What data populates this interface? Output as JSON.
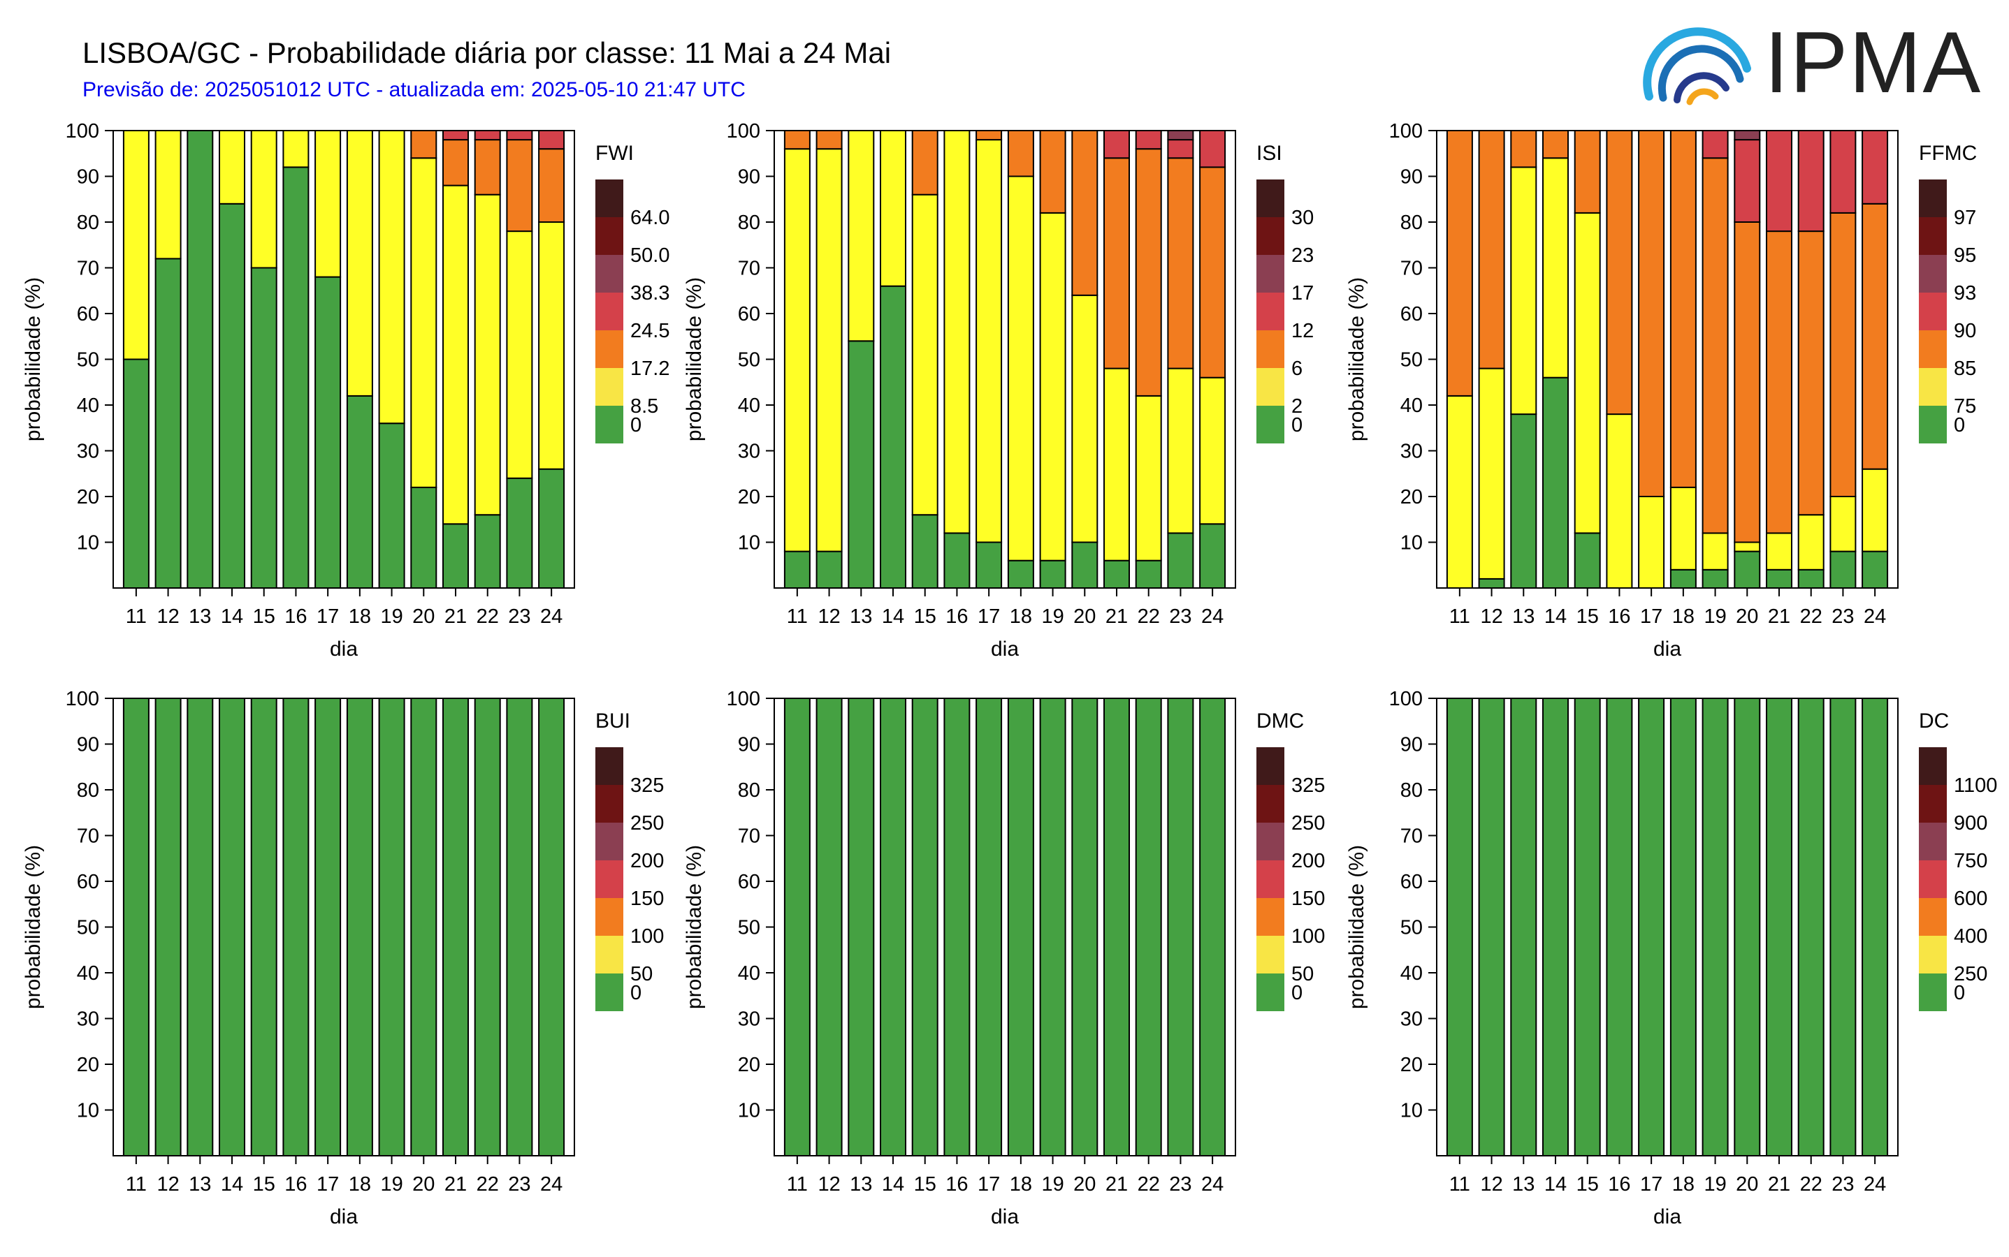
{
  "header": {
    "title": "LISBOA/GC - Probabilidade diária por classe: 11 Mai a 24 Mai",
    "subtitle": "Previsão de: 2025051012 UTC - atualizada em: 2025-05-10 21:47 UTC",
    "logo_text": "IPMA"
  },
  "class_colors": [
    "#45a142",
    "#ffff26",
    "#f27c1f",
    "#d4414a",
    "#8b3f52",
    "#6e1414",
    "#401a1a"
  ],
  "legend_swatch_colors": [
    "#45a142",
    "#f8e545",
    "#f27c1f",
    "#d4414a",
    "#8b3f52",
    "#6e1414",
    "#401a1a"
  ],
  "chart_data": [
    {
      "type": "bar",
      "stacked": true,
      "index": "FWI",
      "categories": [
        "11",
        "12",
        "13",
        "14",
        "15",
        "16",
        "17",
        "18",
        "19",
        "20",
        "21",
        "22",
        "23",
        "24"
      ],
      "xlabel": "dia",
      "ylabel": "probabilidade (%)",
      "ylim": [
        0,
        100
      ],
      "yticks": [
        10,
        20,
        30,
        40,
        50,
        60,
        70,
        80,
        90,
        100
      ],
      "legend_title": "FWI",
      "legend_labels": [
        "0",
        "8.5",
        "17.2",
        "24.5",
        "38.3",
        "50.0",
        "64.0"
      ],
      "series": [
        {
          "values": [
            50,
            72,
            100,
            84,
            70,
            92,
            68,
            42,
            36,
            22,
            14,
            16,
            24,
            26
          ]
        },
        {
          "values": [
            50,
            28,
            0,
            16,
            30,
            8,
            32,
            58,
            64,
            72,
            74,
            70,
            54,
            54
          ]
        },
        {
          "values": [
            0,
            0,
            0,
            0,
            0,
            0,
            0,
            0,
            0,
            6,
            10,
            12,
            20,
            16
          ]
        },
        {
          "values": [
            0,
            0,
            0,
            0,
            0,
            0,
            0,
            0,
            0,
            0,
            2,
            2,
            2,
            4
          ]
        }
      ]
    },
    {
      "type": "bar",
      "stacked": true,
      "index": "ISI",
      "categories": [
        "11",
        "12",
        "13",
        "14",
        "15",
        "16",
        "17",
        "18",
        "19",
        "20",
        "21",
        "22",
        "23",
        "24"
      ],
      "xlabel": "dia",
      "ylabel": "probabilidade (%)",
      "ylim": [
        0,
        100
      ],
      "yticks": [
        10,
        20,
        30,
        40,
        50,
        60,
        70,
        80,
        90,
        100
      ],
      "legend_title": "ISI",
      "legend_labels": [
        "0",
        "2",
        "6",
        "12",
        "17",
        "23",
        "30"
      ],
      "series": [
        {
          "values": [
            8,
            8,
            54,
            66,
            16,
            12,
            10,
            6,
            6,
            10,
            6,
            6,
            12,
            14
          ]
        },
        {
          "values": [
            88,
            88,
            46,
            34,
            70,
            88,
            88,
            84,
            76,
            54,
            42,
            36,
            36,
            32
          ]
        },
        {
          "values": [
            4,
            4,
            0,
            0,
            14,
            0,
            2,
            10,
            18,
            36,
            46,
            54,
            46,
            46
          ]
        },
        {
          "values": [
            0,
            0,
            0,
            0,
            0,
            0,
            0,
            0,
            0,
            0,
            6,
            4,
            4,
            8
          ]
        },
        {
          "values": [
            0,
            0,
            0,
            0,
            0,
            0,
            0,
            0,
            0,
            0,
            0,
            0,
            2,
            0
          ]
        }
      ]
    },
    {
      "type": "bar",
      "stacked": true,
      "index": "FFMC",
      "categories": [
        "11",
        "12",
        "13",
        "14",
        "15",
        "16",
        "17",
        "18",
        "19",
        "20",
        "21",
        "22",
        "23",
        "24"
      ],
      "xlabel": "dia",
      "ylabel": "probabilidade (%)",
      "ylim": [
        0,
        100
      ],
      "yticks": [
        10,
        20,
        30,
        40,
        50,
        60,
        70,
        80,
        90,
        100
      ],
      "legend_title": "FFMC",
      "legend_labels": [
        "0",
        "75",
        "85",
        "90",
        "93",
        "95",
        "97"
      ],
      "series": [
        {
          "values": [
            0,
            2,
            38,
            46,
            12,
            0,
            0,
            4,
            4,
            8,
            4,
            4,
            8,
            8
          ]
        },
        {
          "values": [
            42,
            46,
            54,
            48,
            70,
            38,
            20,
            18,
            8,
            2,
            8,
            12,
            12,
            18
          ]
        },
        {
          "values": [
            58,
            52,
            8,
            6,
            18,
            62,
            80,
            78,
            82,
            70,
            66,
            62,
            62,
            58
          ]
        },
        {
          "values": [
            0,
            0,
            0,
            0,
            0,
            0,
            0,
            0,
            6,
            18,
            22,
            22,
            18,
            16
          ]
        },
        {
          "values": [
            0,
            0,
            0,
            0,
            0,
            0,
            0,
            0,
            0,
            2,
            0,
            0,
            0,
            0
          ]
        }
      ]
    },
    {
      "type": "bar",
      "stacked": true,
      "index": "BUI",
      "categories": [
        "11",
        "12",
        "13",
        "14",
        "15",
        "16",
        "17",
        "18",
        "19",
        "20",
        "21",
        "22",
        "23",
        "24"
      ],
      "xlabel": "dia",
      "ylabel": "probabilidade (%)",
      "ylim": [
        0,
        100
      ],
      "yticks": [
        10,
        20,
        30,
        40,
        50,
        60,
        70,
        80,
        90,
        100
      ],
      "legend_title": "BUI",
      "legend_labels": [
        "0",
        "50",
        "100",
        "150",
        "200",
        "250",
        "325"
      ],
      "series": [
        {
          "values": [
            100,
            100,
            100,
            100,
            100,
            100,
            100,
            100,
            100,
            100,
            100,
            100,
            100,
            100
          ]
        }
      ]
    },
    {
      "type": "bar",
      "stacked": true,
      "index": "DMC",
      "categories": [
        "11",
        "12",
        "13",
        "14",
        "15",
        "16",
        "17",
        "18",
        "19",
        "20",
        "21",
        "22",
        "23",
        "24"
      ],
      "xlabel": "dia",
      "ylabel": "probabilidade (%)",
      "ylim": [
        0,
        100
      ],
      "yticks": [
        10,
        20,
        30,
        40,
        50,
        60,
        70,
        80,
        90,
        100
      ],
      "legend_title": "DMC",
      "legend_labels": [
        "0",
        "50",
        "100",
        "150",
        "200",
        "250",
        "325"
      ],
      "series": [
        {
          "values": [
            100,
            100,
            100,
            100,
            100,
            100,
            100,
            100,
            100,
            100,
            100,
            100,
            100,
            100
          ]
        }
      ]
    },
    {
      "type": "bar",
      "stacked": true,
      "index": "DC",
      "categories": [
        "11",
        "12",
        "13",
        "14",
        "15",
        "16",
        "17",
        "18",
        "19",
        "20",
        "21",
        "22",
        "23",
        "24"
      ],
      "xlabel": "dia",
      "ylabel": "probabilidade (%)",
      "ylim": [
        0,
        100
      ],
      "yticks": [
        10,
        20,
        30,
        40,
        50,
        60,
        70,
        80,
        90,
        100
      ],
      "legend_title": "DC",
      "legend_labels": [
        "0",
        "250",
        "400",
        "600",
        "750",
        "900",
        "1100"
      ],
      "series": [
        {
          "values": [
            100,
            100,
            100,
            100,
            100,
            100,
            100,
            100,
            100,
            100,
            100,
            100,
            100,
            100
          ]
        }
      ]
    }
  ]
}
